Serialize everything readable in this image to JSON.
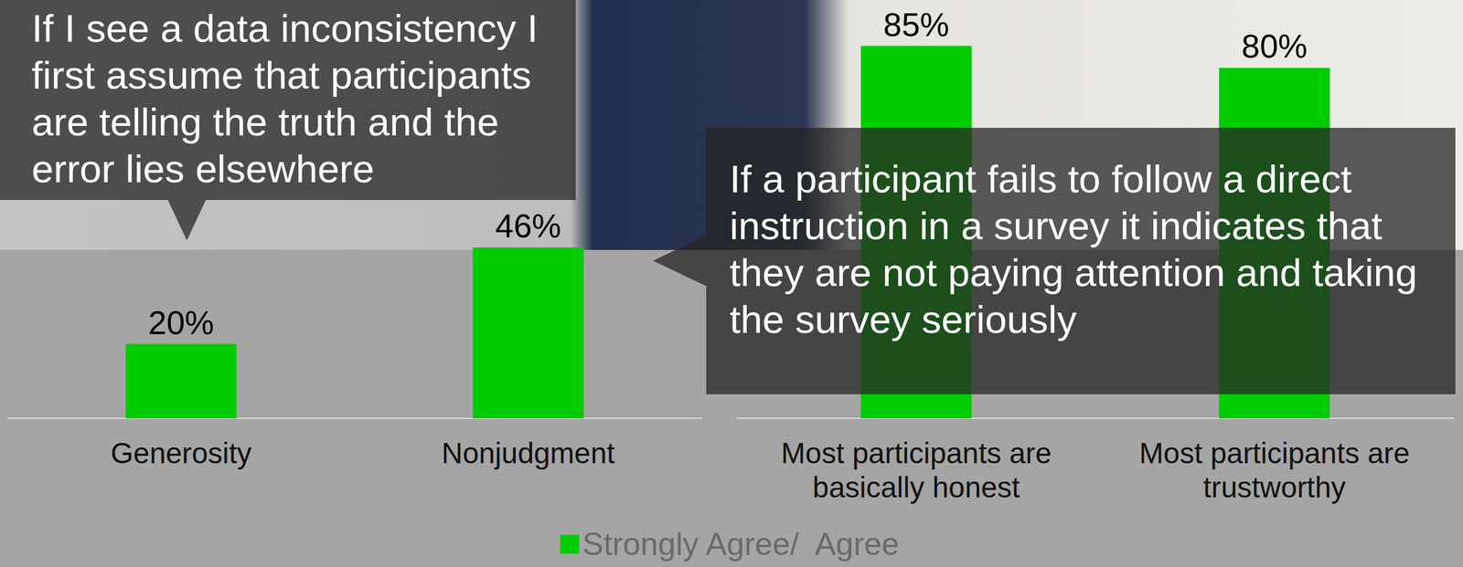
{
  "chart_data": [
    {
      "type": "bar",
      "categories": [
        "Generosity",
        "Nonjudgment"
      ],
      "series": [
        {
          "name": "Strongly Agree/  Agree",
          "color": "#00cc00",
          "values": [
            20,
            46
          ],
          "value_labels": [
            "20%",
            "46%"
          ]
        }
      ],
      "ylim": [
        0,
        70
      ],
      "data_labels": true,
      "tick_labels": "x",
      "grid": false,
      "legend": "bottom",
      "annotations": [
        "If I see a data inconsistency I first assume that participants are telling the truth and the error lies elsewhere"
      ]
    },
    {
      "type": "bar",
      "categories": [
        "Most participants are basically honest",
        "Most participants are trustworthy"
      ],
      "series": [
        {
          "name": "Strongly Agree/  Agree",
          "color": "#00cc00",
          "values": [
            85,
            80
          ],
          "value_labels": [
            "85%",
            "80%"
          ]
        }
      ],
      "ylim": [
        0,
        90
      ],
      "data_labels": true,
      "tick_labels": "x",
      "grid": false,
      "legend": "bottom",
      "annotations": [
        "If a participant fails to follow a direct instruction in a survey it indicates that they are not paying attention and taking the survey seriously"
      ]
    }
  ]
}
